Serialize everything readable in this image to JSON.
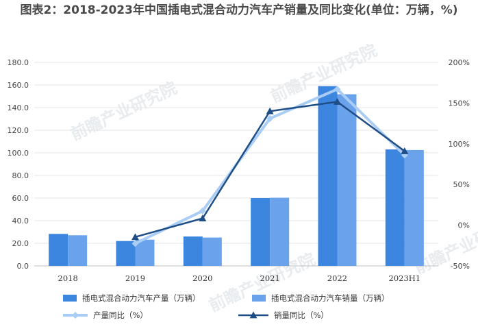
{
  "title": "图表2：2018-2023年中国插电式混合动力汽车产销量及同比变化(单位：万辆，%)",
  "watermark": "前瞻产业研究院",
  "chart_data": {
    "type": "bar",
    "categories": [
      "2018",
      "2019",
      "2020",
      "2021",
      "2022",
      "2023H1"
    ],
    "y_left": {
      "min": 0,
      "max": 180,
      "step": 20,
      "ticks": [
        "0.0",
        "20.0",
        "40.0",
        "60.0",
        "80.0",
        "100.0",
        "120.0",
        "140.0",
        "160.0",
        "180.0"
      ]
    },
    "y_right": {
      "min": -50,
      "max": 200,
      "step": 50,
      "ticks": [
        "-50%",
        "0%",
        "50%",
        "100%",
        "150%",
        "200%"
      ]
    },
    "bar_series": [
      {
        "name": "插电式混合动力汽车产量（万辆）",
        "values": [
          28.3,
          22.0,
          26.0,
          60.0,
          159.0,
          103.0
        ],
        "color": "#3d86e0"
      },
      {
        "name": "插电式混合动力汽车销量（万辆）",
        "values": [
          27.1,
          23.2,
          25.1,
          60.3,
          151.8,
          102.5
        ],
        "color": "#6aa3ec"
      }
    ],
    "line_series": [
      {
        "name": "产量同比（%）",
        "values": [
          null,
          -22.5,
          17.5,
          131.0,
          167.0,
          86.0
        ],
        "color": "#a9cdf5",
        "marker": "diamond"
      },
      {
        "name": "销量同比（%）",
        "values": [
          null,
          -14.5,
          8.4,
          140.0,
          151.6,
          91.0
        ],
        "color": "#1f4e86",
        "marker": "triangle"
      }
    ],
    "legend_position": "bottom",
    "grid": true
  }
}
